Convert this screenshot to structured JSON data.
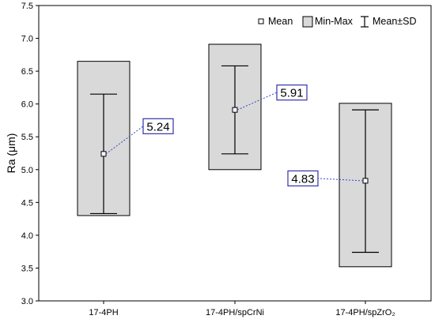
{
  "chart_data": {
    "type": "box",
    "ylabel": "Ra (μm)",
    "ylim": [
      3.0,
      7.5
    ],
    "y_ticks": [
      "3.0",
      "3.5",
      "4.0",
      "4.5",
      "5.0",
      "5.5",
      "6.0",
      "6.5",
      "7.0",
      "7.5"
    ],
    "categories": [
      "17-4PH",
      "17-4PH/spCrNi",
      "17-4PH/spZrO₂"
    ],
    "series": [
      {
        "category": "17-4PH",
        "mean": 5.24,
        "min": 4.3,
        "max": 6.65,
        "sd_low": 4.33,
        "sd_high": 6.15,
        "mean_label": "5.24"
      },
      {
        "category": "17-4PH/spCrNi",
        "mean": 5.91,
        "min": 5.0,
        "max": 6.91,
        "sd_low": 5.24,
        "sd_high": 6.58,
        "mean_label": "5.91"
      },
      {
        "category": "17-4PH/spZrO₂",
        "mean": 4.83,
        "min": 3.52,
        "max": 6.01,
        "sd_low": 3.74,
        "sd_high": 5.91,
        "mean_label": "4.83"
      }
    ],
    "legend": {
      "placement": "top-right",
      "mean_label": "Mean",
      "minmax_label": "Min-Max",
      "sd_label": "Mean±SD"
    },
    "grid": false,
    "colors": {
      "box_fill": "#d9d9d9",
      "box_stroke": "#000000",
      "label_border": "#3333aa",
      "connector": "#3344cc"
    }
  }
}
